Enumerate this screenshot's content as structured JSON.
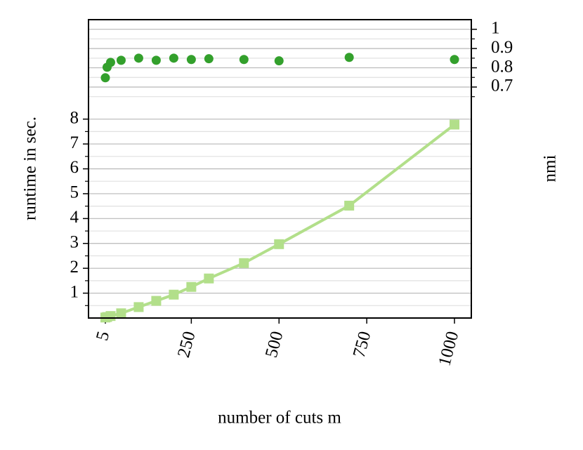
{
  "chart_data": {
    "type": "dual-axis",
    "xlabel": "number of cuts m",
    "ylabel": "runtime in sec.",
    "y2label": "nmi",
    "xlim": [
      -43,
      1048
    ],
    "xticks": [
      5,
      250,
      500,
      750,
      1000
    ],
    "ylim": [
      0,
      12
    ],
    "yticks": [
      1,
      2,
      3,
      4,
      5,
      6,
      7,
      8
    ],
    "yminor": [
      0.5,
      1.5,
      2.5,
      3.5,
      4.5,
      5.5,
      6.5,
      7.5
    ],
    "y2lim": [
      -0.5,
      1.05
    ],
    "y2ticks": [
      0.7,
      0.8,
      0.9,
      1.0
    ],
    "y2minor": [
      0.65,
      0.75,
      0.85,
      0.95
    ],
    "grid": true,
    "series": [
      {
        "style": "line-square",
        "color": "#b2df8a",
        "axis": "y",
        "x": [
          5,
          10,
          20,
          50,
          100,
          150,
          200,
          250,
          300,
          400,
          500,
          700,
          1000
        ],
        "values": [
          0.02,
          0.04,
          0.08,
          0.19,
          0.44,
          0.69,
          0.94,
          1.25,
          1.59,
          2.21,
          2.97,
          4.52,
          7.78
        ]
      },
      {
        "style": "dots",
        "color": "#33a02c",
        "axis": "y2",
        "x": [
          5,
          10,
          20,
          50,
          100,
          150,
          200,
          250,
          300,
          400,
          500,
          700,
          1000
        ],
        "values": [
          0.748,
          0.803,
          0.828,
          0.839,
          0.85,
          0.839,
          0.85,
          0.843,
          0.847,
          0.843,
          0.836,
          0.854,
          0.843
        ]
      }
    ]
  }
}
